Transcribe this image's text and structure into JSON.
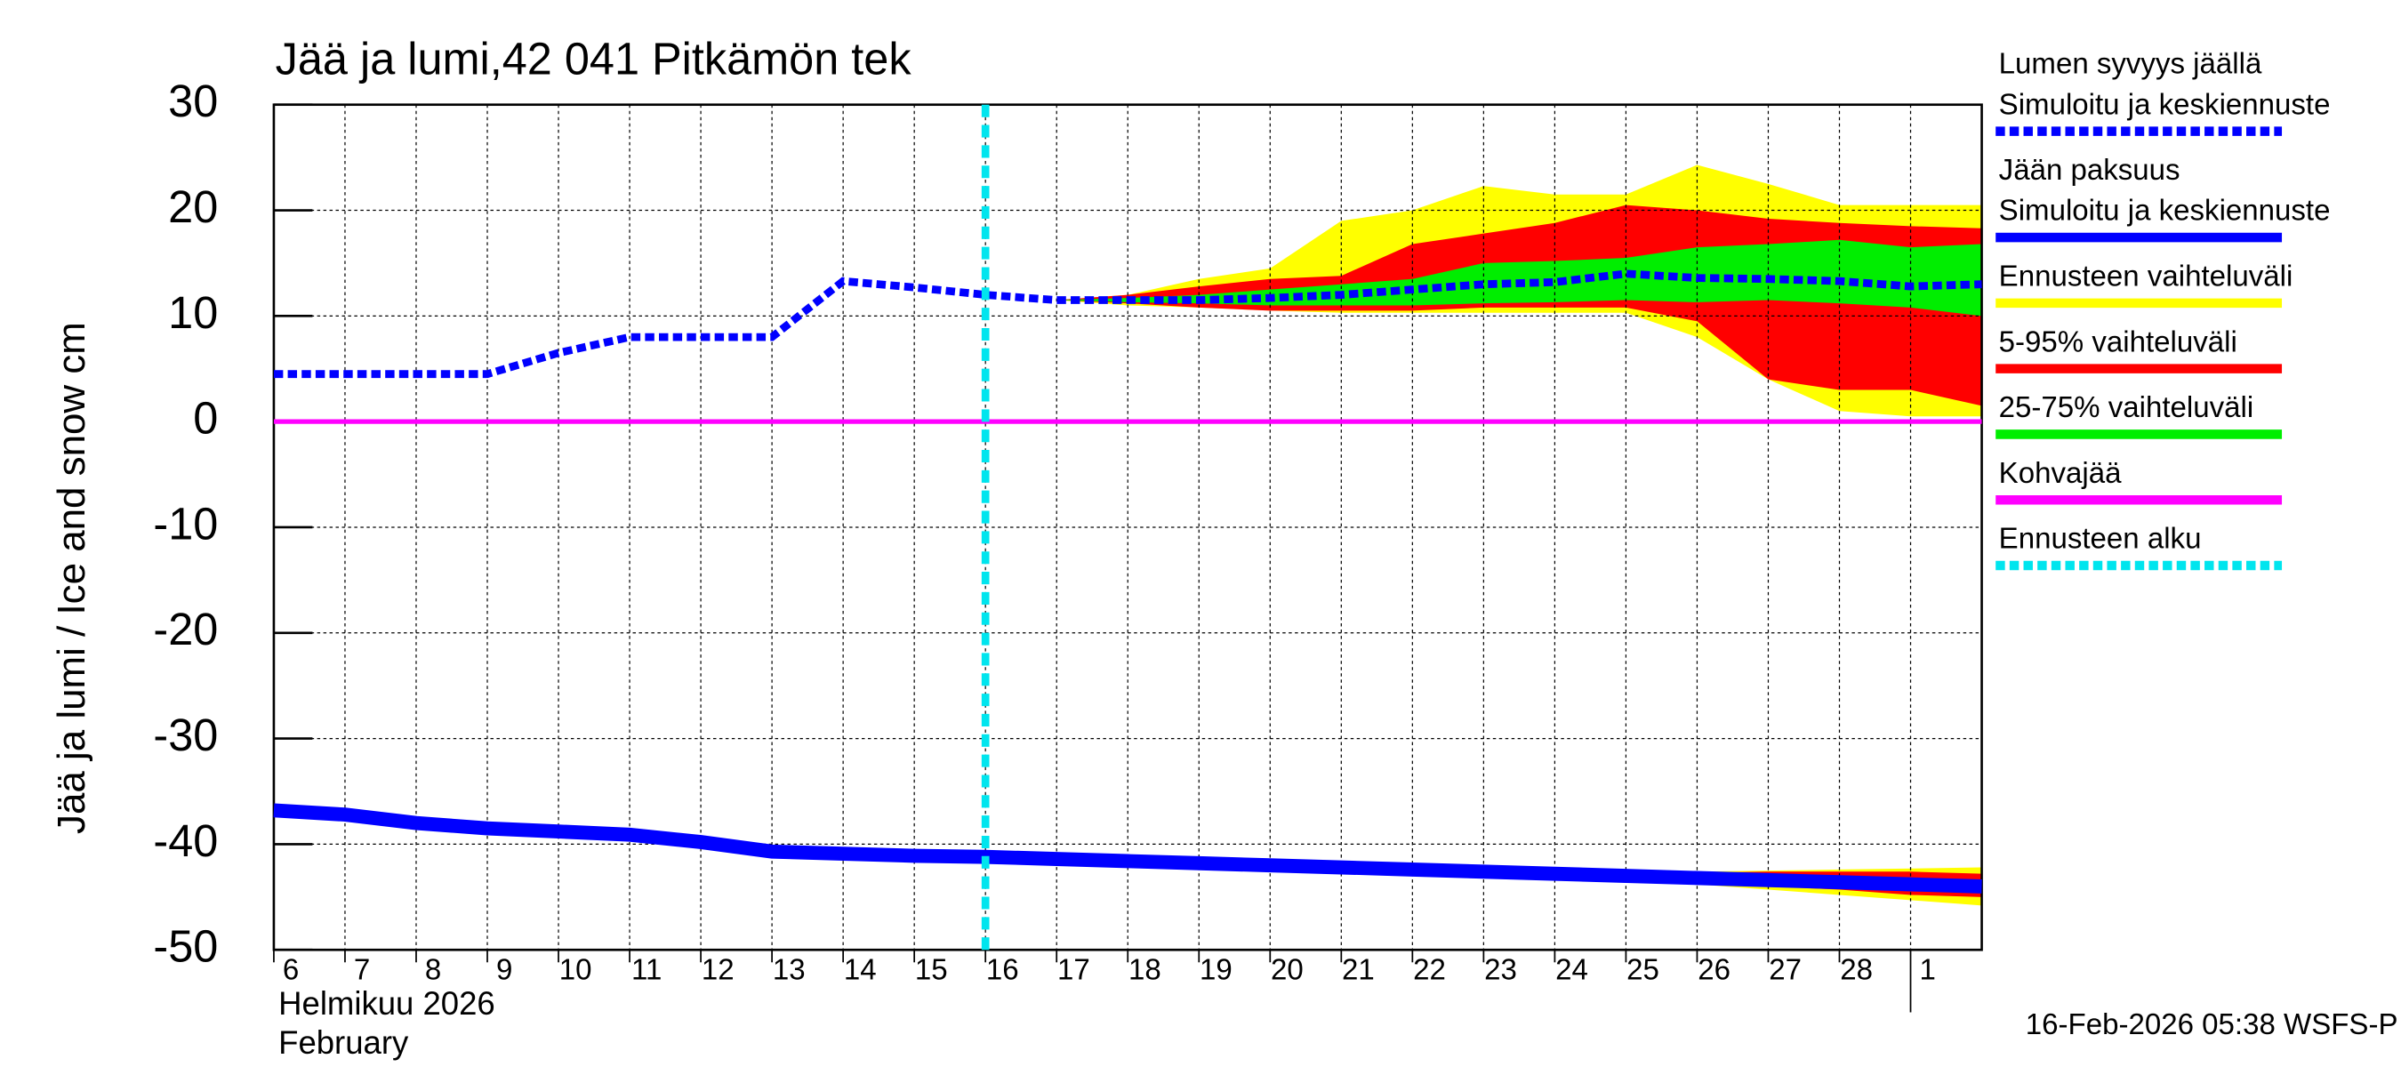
{
  "chart_data": {
    "type": "line",
    "title": "Jää ja lumi,42 041 Pitkämön tek",
    "ylabel": "Jää ja lumi / Ice and snow    cm",
    "xlabel_lines": [
      "Helmikuu  2026",
      "February"
    ],
    "footer": "16-Feb-2026 05:38 WSFS-P",
    "ylim": [
      -50,
      30
    ],
    "yticks": [
      -50,
      -40,
      -30,
      -20,
      -10,
      0,
      10,
      20,
      30
    ],
    "xlim": [
      0,
      24
    ],
    "xticks": [
      {
        "value": 0,
        "label": "6"
      },
      {
        "value": 1,
        "label": "7"
      },
      {
        "value": 2,
        "label": "8"
      },
      {
        "value": 3,
        "label": "9"
      },
      {
        "value": 4,
        "label": "10"
      },
      {
        "value": 5,
        "label": "11"
      },
      {
        "value": 6,
        "label": "12"
      },
      {
        "value": 7,
        "label": "13"
      },
      {
        "value": 8,
        "label": "14"
      },
      {
        "value": 9,
        "label": "15"
      },
      {
        "value": 10,
        "label": "16"
      },
      {
        "value": 11,
        "label": "17"
      },
      {
        "value": 12,
        "label": "18"
      },
      {
        "value": 13,
        "label": "19"
      },
      {
        "value": 14,
        "label": "20"
      },
      {
        "value": 15,
        "label": "21"
      },
      {
        "value": 16,
        "label": "22"
      },
      {
        "value": 17,
        "label": "23"
      },
      {
        "value": 18,
        "label": "24"
      },
      {
        "value": 19,
        "label": "25"
      },
      {
        "value": 20,
        "label": "26"
      },
      {
        "value": 21,
        "label": "27"
      },
      {
        "value": 22,
        "label": "28"
      },
      {
        "value": 23,
        "label": "1"
      }
    ],
    "grid": true,
    "forecast_start": 10,
    "bands": [
      {
        "color": "#ffff00",
        "x": [
          11,
          12,
          13,
          14,
          15,
          16,
          17,
          18,
          19,
          20,
          21,
          22,
          23,
          24
        ],
        "upper": [
          11.5,
          12,
          13.5,
          14.5,
          19,
          20,
          22.3,
          21.5,
          21.5,
          24.3,
          22.5,
          20.5,
          20.5,
          20.5
        ],
        "lower": [
          11.5,
          11,
          10.8,
          10.5,
          10.3,
          10.3,
          10.3,
          10.3,
          10.3,
          8,
          4,
          1,
          0.5,
          0.5
        ]
      },
      {
        "color": "#ff0000",
        "x": [
          11,
          12,
          13,
          14,
          15,
          16,
          17,
          18,
          19,
          20,
          21,
          22,
          23,
          24
        ],
        "upper": [
          11.5,
          12,
          12.8,
          13.5,
          13.8,
          16.8,
          17.8,
          18.8,
          20.5,
          20,
          19.2,
          18.8,
          18.5,
          18.3
        ],
        "lower": [
          11.5,
          11.2,
          10.8,
          10.5,
          10.5,
          10.5,
          10.8,
          10.8,
          10.8,
          9.5,
          4,
          3,
          3,
          1.5
        ]
      },
      {
        "color": "#00ee00",
        "x": [
          11,
          12,
          13,
          14,
          15,
          16,
          17,
          18,
          19,
          20,
          21,
          22,
          23,
          24
        ],
        "upper": [
          11.5,
          11.7,
          12,
          12.5,
          13,
          13.5,
          15,
          15.2,
          15.5,
          16.5,
          16.8,
          17.2,
          16.5,
          16.8
        ],
        "lower": [
          11.5,
          11.3,
          11.2,
          11,
          11,
          11,
          11.2,
          11.3,
          11.5,
          11.3,
          11.5,
          11.2,
          10.8,
          10
        ]
      },
      {
        "color": "#ffff00",
        "x": [
          17,
          18,
          19,
          20,
          21,
          22,
          23,
          24
        ],
        "upper": [
          -42.6,
          -42.7,
          -42.7,
          -42.6,
          -42.5,
          -42.4,
          -42.3,
          -42.2
        ],
        "lower": [
          -42.6,
          -42.9,
          -43.3,
          -43.8,
          -44.3,
          -44.8,
          -45.3,
          -45.8
        ]
      },
      {
        "color": "#ff0000",
        "x": [
          17,
          18,
          19,
          20,
          21,
          22,
          23,
          24
        ],
        "upper": [
          -42.6,
          -42.7,
          -42.8,
          -42.7,
          -42.6,
          -42.6,
          -42.6,
          -42.8
        ],
        "lower": [
          -42.6,
          -42.9,
          -43.2,
          -43.6,
          -44,
          -44.3,
          -44.8,
          -45
        ]
      }
    ],
    "series": [
      {
        "color": "#ff00ff",
        "width": 3,
        "dash": false,
        "x": [
          0,
          24
        ],
        "values": [
          0,
          0
        ]
      },
      {
        "color": "#0000ff",
        "width": 9,
        "dash": false,
        "x": [
          0,
          1,
          2,
          3,
          4,
          5,
          6,
          7,
          8,
          9,
          10,
          11,
          12,
          13,
          14,
          15,
          16,
          17,
          18,
          19,
          20,
          21,
          22,
          23,
          24
        ],
        "values": [
          -36.8,
          -37.2,
          -38,
          -38.5,
          -38.8,
          -39.1,
          -39.8,
          -40.7,
          -40.9,
          -41.1,
          -41.2,
          -41.4,
          -41.6,
          -41.8,
          -42,
          -42.2,
          -42.4,
          -42.6,
          -42.8,
          -43,
          -43.2,
          -43.4,
          -43.6,
          -43.8,
          -44
        ]
      },
      {
        "color": "#0000ff",
        "width": 5,
        "dash": true,
        "x": [
          0,
          1,
          2,
          3,
          4,
          5,
          6,
          7,
          8,
          9,
          10,
          11,
          12,
          13,
          14,
          15,
          16,
          17,
          18,
          19,
          20,
          21,
          22,
          23,
          24
        ],
        "values": [
          4.5,
          4.5,
          4.5,
          4.5,
          6.5,
          8,
          8,
          8,
          13.3,
          12.7,
          12,
          11.5,
          11.5,
          11.5,
          11.7,
          12,
          12.5,
          13,
          13.2,
          14,
          13.6,
          13.5,
          13.3,
          12.8,
          13
        ]
      }
    ],
    "legend": [
      {
        "label": [
          "Lumen syvyys jäällä",
          "Simuloitu ja keskiennuste"
        ],
        "color": "#0000ff",
        "dash": true
      },
      {
        "label": [
          "Jään paksuus",
          "Simuloitu ja keskiennuste"
        ],
        "color": "#0000ff",
        "dash": false
      },
      {
        "label": [
          "Ennusteen vaihteluväli"
        ],
        "color": "#ffff00",
        "dash": false
      },
      {
        "label": [
          "5-95% vaihteluväli"
        ],
        "color": "#ff0000",
        "dash": false
      },
      {
        "label": [
          "25-75% vaihteluväli"
        ],
        "color": "#00ee00",
        "dash": false
      },
      {
        "label": [
          "Kohvajää"
        ],
        "color": "#ff00ff",
        "dash": false
      },
      {
        "label": [
          "Ennusteen alku"
        ],
        "color": "#00e5ee",
        "dash": true
      }
    ]
  }
}
